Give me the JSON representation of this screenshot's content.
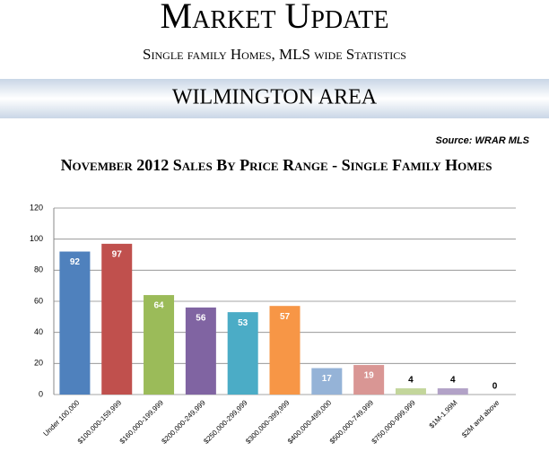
{
  "header": {
    "title": "Market Update",
    "subtitle": "Single family Homes, MLS wide Statistics",
    "area": "WILMINGTON AREA",
    "source": "Source: WRAR MLS"
  },
  "chart_data": {
    "type": "bar",
    "title": "November 2012 Sales By Price Range - Single Family Homes",
    "categories": [
      "Under 100,000",
      "$100,000-159,999",
      "$160,000-199,999",
      "$200,000-249,999",
      "$250,000-299,999",
      "$300,000-399,999",
      "$400,000-499,000",
      "$500,000-749,999",
      "$750,000-999,999",
      "$1M-1.99M",
      "$2M and above"
    ],
    "values": [
      92,
      97,
      64,
      56,
      53,
      57,
      17,
      19,
      4,
      4,
      0
    ],
    "colors": [
      "#4f81bd",
      "#c0504d",
      "#9bbb59",
      "#8064a2",
      "#4bacc6",
      "#f79646",
      "#95b3d7",
      "#d99694",
      "#c3d69b",
      "#b2a2c7",
      "#92cddc"
    ],
    "ylim": [
      0,
      120
    ],
    "yticks": [
      0,
      20,
      40,
      60,
      80,
      100,
      120
    ],
    "grid": true
  }
}
